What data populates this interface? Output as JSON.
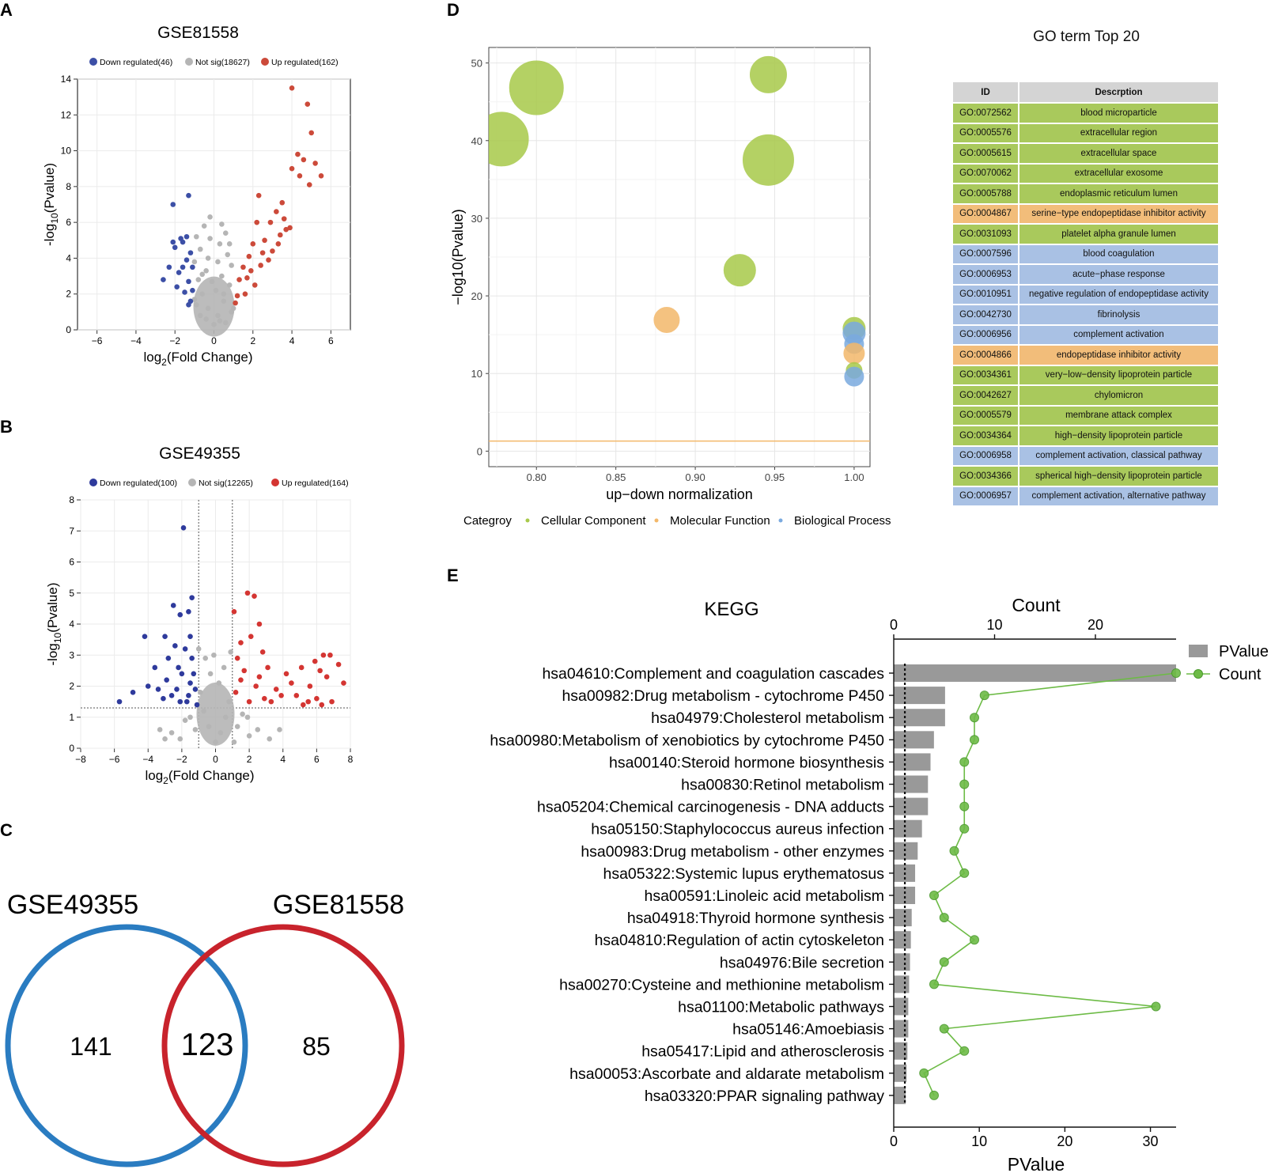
{
  "colors": {
    "down": "#3c4fa6",
    "down_b": "#2e3a9c",
    "notsig": "#b5b5b5",
    "up_a": "#cc4a3a",
    "up_b": "#d43532",
    "cc": "#a8c94a",
    "mf": "#f3b86a",
    "bp": "#7aaadf",
    "cc_row": "#a9c95c",
    "mf_row": "#f2bd7a",
    "bp_row": "#a9c1e4",
    "venn_blue": "#2a7cc1",
    "venn_red": "#c8232c",
    "kegg_bar": "#999999",
    "kegg_line": "#6dbb46"
  },
  "panel_labels": {
    "a": "A",
    "b": "B",
    "c": "C",
    "d": "D",
    "e": "E"
  },
  "volcano_a": {
    "title": "GSE81558",
    "legend": [
      "Down regulated(46)",
      "Not sig(18627)",
      "Up regulated(162)"
    ],
    "xlabel_main": "log",
    "xlabel_sub": "2",
    "xlabel_rest": "(Fold Change)",
    "ylabel_pre": "-log",
    "ylabel_sub": "10",
    "ylabel_rest": "(Pvalue)",
    "xticks": [
      "−6",
      "−4",
      "−2",
      "0",
      "2",
      "4",
      "6"
    ],
    "yticks": [
      "0",
      "2",
      "4",
      "6",
      "8",
      "10",
      "12",
      "14"
    ],
    "xlim": [
      -7,
      7
    ],
    "ylim": [
      0,
      14
    ],
    "down_points": [
      [
        -2.1,
        7.0
      ],
      [
        -1.3,
        7.5
      ],
      [
        -2.6,
        2.8
      ],
      [
        -2.3,
        3.5
      ],
      [
        -2.0,
        4.6
      ],
      [
        -1.8,
        3.2
      ],
      [
        -1.6,
        4.9
      ],
      [
        -1.4,
        3.9
      ],
      [
        -1.5,
        2.1
      ],
      [
        -1.2,
        1.6
      ],
      [
        -2.1,
        4.9
      ],
      [
        -1.7,
        5.1
      ],
      [
        -1.3,
        2.7
      ],
      [
        -1.1,
        3.5
      ],
      [
        -1.9,
        2.4
      ],
      [
        -1.4,
        5.2
      ],
      [
        -1.2,
        4.3
      ],
      [
        -1.6,
        3.5
      ],
      [
        -1.1,
        2.2
      ],
      [
        -1.3,
        1.4
      ]
    ],
    "up_points": [
      [
        4.0,
        13.5
      ],
      [
        4.8,
        12.6
      ],
      [
        5.0,
        11.0
      ],
      [
        4.3,
        9.8
      ],
      [
        4.6,
        9.5
      ],
      [
        4.0,
        9.0
      ],
      [
        5.2,
        9.3
      ],
      [
        5.5,
        8.6
      ],
      [
        4.9,
        8.1
      ],
      [
        4.4,
        8.6
      ],
      [
        3.5,
        7.1
      ],
      [
        3.2,
        6.6
      ],
      [
        2.3,
        7.5
      ],
      [
        3.6,
        6.2
      ],
      [
        3.9,
        5.7
      ],
      [
        2.9,
        6.0
      ],
      [
        3.4,
        5.3
      ],
      [
        2.6,
        5.0
      ],
      [
        2.0,
        4.8
      ],
      [
        3.0,
        4.4
      ],
      [
        1.8,
        4.1
      ],
      [
        2.4,
        3.6
      ],
      [
        1.5,
        3.5
      ],
      [
        2.8,
        3.9
      ],
      [
        1.3,
        2.8
      ],
      [
        2.1,
        2.5
      ],
      [
        1.7,
        2.9
      ],
      [
        3.3,
        4.8
      ],
      [
        3.7,
        5.6
      ],
      [
        1.2,
        1.9
      ],
      [
        1.1,
        1.5
      ],
      [
        1.6,
        2.0
      ],
      [
        2.5,
        4.3
      ],
      [
        1.9,
        3.3
      ],
      [
        2.2,
        6.0
      ]
    ],
    "ns_points": [
      [
        0,
        0.3
      ],
      [
        0.2,
        0.8
      ],
      [
        -0.3,
        1.2
      ],
      [
        0.5,
        1.6
      ],
      [
        -0.6,
        2.0
      ],
      [
        0.8,
        2.5
      ],
      [
        -0.8,
        2.8
      ],
      [
        0.4,
        3.0
      ],
      [
        -0.4,
        3.3
      ],
      [
        0.9,
        3.6
      ],
      [
        -1.0,
        3.8
      ],
      [
        0.7,
        4.2
      ],
      [
        -0.7,
        4.5
      ],
      [
        0.3,
        4.8
      ],
      [
        -0.2,
        5.1
      ],
      [
        0.6,
        5.4
      ],
      [
        -0.5,
        5.8
      ],
      [
        0.9,
        1.0
      ],
      [
        -0.9,
        1.4
      ],
      [
        0.1,
        2.2
      ],
      [
        -0.1,
        2.7
      ],
      [
        0.3,
        0.5
      ],
      [
        -0.4,
        0.6
      ],
      [
        0.6,
        0.4
      ],
      [
        -0.7,
        0.8
      ],
      [
        1.0,
        1.2
      ],
      [
        -1.0,
        1.7
      ],
      [
        0.2,
        3.8
      ],
      [
        -0.3,
        4.0
      ],
      [
        0.5,
        2.0
      ],
      [
        -0.6,
        3.1
      ],
      [
        -0.2,
        6.3
      ],
      [
        0.4,
        5.9
      ],
      [
        0.8,
        4.8
      ],
      [
        -0.9,
        5.2
      ]
    ]
  },
  "volcano_b": {
    "title": "GSE49355",
    "legend": [
      "Down regulated(100)",
      "Not sig(12265)",
      "Up regulated(164)"
    ],
    "xlabel_main": "log",
    "xlabel_sub": "2",
    "xlabel_rest": "(Fold Change)",
    "ylabel_pre": "-log",
    "ylabel_sub": "10",
    "ylabel_rest": "(Pvalue)",
    "xticks": [
      "−8",
      "−6",
      "−4",
      "−2",
      "0",
      "2",
      "4",
      "6",
      "8"
    ],
    "yticks": [
      "0",
      "1",
      "2",
      "3",
      "4",
      "5",
      "6",
      "7",
      "8"
    ],
    "xlim": [
      -8,
      8
    ],
    "ylim": [
      0,
      8
    ],
    "threshold_x": [
      -1,
      1
    ],
    "threshold_y": 1.3,
    "down_points": [
      [
        -1.9,
        7.1
      ],
      [
        -1.4,
        4.85
      ],
      [
        -2.5,
        4.6
      ],
      [
        -1.6,
        4.4
      ],
      [
        -2.1,
        4.3
      ],
      [
        -4.2,
        3.6
      ],
      [
        -3.0,
        3.6
      ],
      [
        -2.4,
        3.3
      ],
      [
        -1.5,
        3.6
      ],
      [
        -1.8,
        3.2
      ],
      [
        -2.8,
        2.9
      ],
      [
        -3.6,
        2.6
      ],
      [
        -2.2,
        2.6
      ],
      [
        -1.4,
        2.9
      ],
      [
        -4.0,
        2.0
      ],
      [
        -4.9,
        1.8
      ],
      [
        -5.7,
        1.5
      ],
      [
        -3.1,
        1.6
      ],
      [
        -2.6,
        1.7
      ],
      [
        -1.5,
        2.1
      ],
      [
        -2.0,
        2.4
      ],
      [
        -1.2,
        1.9
      ],
      [
        -1.7,
        1.5
      ],
      [
        -2.9,
        2.2
      ],
      [
        -1.1,
        1.4
      ],
      [
        -2.3,
        1.9
      ],
      [
        -3.4,
        1.9
      ],
      [
        -1.3,
        2.4
      ],
      [
        -2.1,
        1.5
      ],
      [
        -1.6,
        1.7
      ]
    ],
    "up_points": [
      [
        1.9,
        5.0
      ],
      [
        2.3,
        4.9
      ],
      [
        1.1,
        4.4
      ],
      [
        2.6,
        4.0
      ],
      [
        2.1,
        3.6
      ],
      [
        1.5,
        3.4
      ],
      [
        2.8,
        3.1
      ],
      [
        6.4,
        3.0
      ],
      [
        6.8,
        3.0
      ],
      [
        5.9,
        2.8
      ],
      [
        7.3,
        2.7
      ],
      [
        5.1,
        2.6
      ],
      [
        6.2,
        2.5
      ],
      [
        3.1,
        2.6
      ],
      [
        4.2,
        2.4
      ],
      [
        1.3,
        2.9
      ],
      [
        1.7,
        2.5
      ],
      [
        7.6,
        2.1
      ],
      [
        6.6,
        2.3
      ],
      [
        5.6,
        2.0
      ],
      [
        4.5,
        2.1
      ],
      [
        3.6,
        1.9
      ],
      [
        2.4,
        2.0
      ],
      [
        1.2,
        1.8
      ],
      [
        3.3,
        1.5
      ],
      [
        5.2,
        1.4
      ],
      [
        6.0,
        1.6
      ],
      [
        6.9,
        1.5
      ],
      [
        4.8,
        1.7
      ],
      [
        2.9,
        1.6
      ],
      [
        2.0,
        1.5
      ],
      [
        1.5,
        2.2
      ],
      [
        3.9,
        1.7
      ],
      [
        5.5,
        1.5
      ],
      [
        6.3,
        1.4
      ],
      [
        2.6,
        2.3
      ]
    ],
    "ns_points": [
      [
        0,
        0.2
      ],
      [
        0.3,
        0.5
      ],
      [
        -0.4,
        0.7
      ],
      [
        0.6,
        1.0
      ],
      [
        -0.7,
        1.2
      ],
      [
        0.8,
        1.5
      ],
      [
        -0.9,
        1.8
      ],
      [
        0.2,
        2.1
      ],
      [
        -0.3,
        2.4
      ],
      [
        0.5,
        2.6
      ],
      [
        -0.6,
        2.9
      ],
      [
        -1.2,
        0.6
      ],
      [
        1.3,
        0.7
      ],
      [
        -1.5,
        1.0
      ],
      [
        1.6,
        1.1
      ],
      [
        -2.1,
        0.3
      ],
      [
        2.0,
        0.4
      ],
      [
        -2.6,
        0.5
      ],
      [
        2.5,
        0.6
      ],
      [
        -3.0,
        0.3
      ],
      [
        3.2,
        0.3
      ],
      [
        -0.1,
        3.0
      ],
      [
        0.9,
        3.1
      ],
      [
        -1.0,
        3.2
      ],
      [
        1.1,
        0.2
      ],
      [
        -1.8,
        0.9
      ],
      [
        1.9,
        1.0
      ],
      [
        3.8,
        0.6
      ],
      [
        -3.3,
        0.6
      ]
    ]
  },
  "venn": {
    "left_name": "GSE49355",
    "right_name": "GSE81558",
    "left_only": "141",
    "both": "123",
    "right_only": "85"
  },
  "go_bubble": {
    "chart_data": {
      "type": "scatter",
      "xlabel": "up−down normalization",
      "ylabel": "−log10(Pvalue)",
      "xlim": [
        0.77,
        1.01
      ],
      "ylim": [
        -2,
        52
      ],
      "xticks": [
        "0.80",
        "0.85",
        "0.90",
        "0.95",
        "1.00"
      ],
      "yticks": [
        "0",
        "10",
        "20",
        "30",
        "40",
        "50"
      ],
      "threshold": 1.3,
      "legend_title": "Categroy",
      "legend": [
        "Cellular Component",
        "Molecular Function",
        "Biological Process"
      ],
      "points": [
        {
          "x": 0.8,
          "y": 46.8,
          "size": 34,
          "cat": "cc"
        },
        {
          "x": 0.778,
          "y": 40.2,
          "size": 34,
          "cat": "cc"
        },
        {
          "x": 0.946,
          "y": 48.5,
          "size": 23,
          "cat": "cc"
        },
        {
          "x": 0.946,
          "y": 37.5,
          "size": 32,
          "cat": "cc"
        },
        {
          "x": 0.928,
          "y": 23.3,
          "size": 20,
          "cat": "cc"
        },
        {
          "x": 0.882,
          "y": 16.9,
          "size": 16,
          "cat": "mf"
        },
        {
          "x": 1.0,
          "y": 15.8,
          "size": 14,
          "cat": "cc"
        },
        {
          "x": 1.0,
          "y": 15.2,
          "size": 14,
          "cat": "bp"
        },
        {
          "x": 1.0,
          "y": 13.8,
          "size": 12,
          "cat": "bp"
        },
        {
          "x": 1.0,
          "y": 12.6,
          "size": 13,
          "cat": "mf"
        },
        {
          "x": 1.0,
          "y": 10.4,
          "size": 10,
          "cat": "cc"
        },
        {
          "x": 1.0,
          "y": 9.6,
          "size": 12,
          "cat": "bp"
        }
      ]
    }
  },
  "go_table": {
    "title": "GO term Top 20",
    "headers": [
      "ID",
      "Descrption"
    ],
    "rows": [
      {
        "id": "GO:0072562",
        "desc": "blood microparticle",
        "cat": "cc"
      },
      {
        "id": "GO:0005576",
        "desc": "extracellular region",
        "cat": "cc"
      },
      {
        "id": "GO:0005615",
        "desc": "extracellular space",
        "cat": "cc"
      },
      {
        "id": "GO:0070062",
        "desc": "extracellular exosome",
        "cat": "cc"
      },
      {
        "id": "GO:0005788",
        "desc": "endoplasmic reticulum lumen",
        "cat": "cc"
      },
      {
        "id": "GO:0004867",
        "desc": "serine−type endopeptidase inhibitor activity",
        "cat": "mf"
      },
      {
        "id": "GO:0031093",
        "desc": "platelet alpha granule lumen",
        "cat": "cc"
      },
      {
        "id": "GO:0007596",
        "desc": "blood coagulation",
        "cat": "bp"
      },
      {
        "id": "GO:0006953",
        "desc": "acute−phase response",
        "cat": "bp"
      },
      {
        "id": "GO:0010951",
        "desc": "negative regulation of endopeptidase activity",
        "cat": "bp"
      },
      {
        "id": "GO:0042730",
        "desc": "fibrinolysis",
        "cat": "bp"
      },
      {
        "id": "GO:0006956",
        "desc": "complement activation",
        "cat": "bp"
      },
      {
        "id": "GO:0004866",
        "desc": "endopeptidase inhibitor activity",
        "cat": "mf"
      },
      {
        "id": "GO:0034361",
        "desc": "very−low−density lipoprotein particle",
        "cat": "cc"
      },
      {
        "id": "GO:0042627",
        "desc": "chylomicron",
        "cat": "cc"
      },
      {
        "id": "GO:0005579",
        "desc": "membrane attack complex",
        "cat": "cc"
      },
      {
        "id": "GO:0034364",
        "desc": "high−density lipoprotein particle",
        "cat": "cc"
      },
      {
        "id": "GO:0006958",
        "desc": "complement activation, classical pathway",
        "cat": "bp"
      },
      {
        "id": "GO:0034366",
        "desc": "spherical high−density lipoprotein particle",
        "cat": "cc"
      },
      {
        "id": "GO:0006957",
        "desc": "complement activation, alternative pathway",
        "cat": "bp"
      }
    ]
  },
  "kegg": {
    "chart_data": {
      "type": "bar",
      "title": "KEGG",
      "top_axis_label": "Count",
      "bottom_axis_label": "PValue",
      "top_ticks": [
        "0",
        "10",
        "20"
      ],
      "top_lim": [
        0,
        28
      ],
      "bottom_ticks": [
        "0",
        "10",
        "20",
        "30"
      ],
      "bottom_lim": [
        0,
        33
      ],
      "legend": [
        "PValue",
        "Count"
      ],
      "threshold": 1.3,
      "categories": [
        "hsa04610:Complement and coagulation cascades",
        "hsa00982:Drug metabolism - cytochrome P450",
        "hsa04979:Cholesterol metabolism",
        "hsa00980:Metabolism of xenobiotics by cytochrome P450",
        "hsa00140:Steroid hormone biosynthesis",
        "hsa00830:Retinol metabolism",
        "hsa05204:Chemical carcinogenesis - DNA adducts",
        "hsa05150:Staphylococcus aureus infection",
        "hsa00983:Drug metabolism - other enzymes",
        "hsa05322:Systemic lupus erythematosus",
        "hsa00591:Linoleic acid metabolism",
        "hsa04918:Thyroid hormone synthesis",
        "hsa04810:Regulation of actin cytoskeleton",
        "hsa04976:Bile secretion",
        "hsa00270:Cysteine and methionine metabolism",
        "hsa01100:Metabolic pathways",
        "hsa05146:Amoebiasis",
        "hsa05417:Lipid and atherosclerosis",
        "hsa00053:Ascorbate and aldarate metabolism",
        "hsa03320:PPAR signaling pathway"
      ],
      "pvalue": [
        33,
        6.0,
        6.0,
        4.7,
        4.3,
        4.0,
        4.0,
        3.3,
        2.8,
        2.5,
        2.5,
        2.1,
        2.0,
        1.9,
        1.8,
        1.7,
        1.7,
        1.6,
        1.5,
        1.4
      ],
      "count": [
        28,
        9,
        8,
        8,
        7,
        7,
        7,
        7,
        6,
        7,
        4,
        5,
        8,
        5,
        4,
        26,
        5,
        7,
        3,
        4
      ]
    }
  }
}
